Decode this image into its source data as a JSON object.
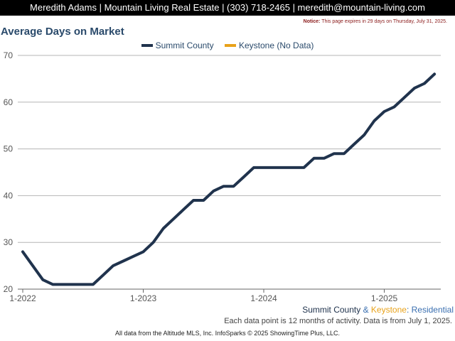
{
  "header": {
    "contact": "Meredith Adams | Mountain Living Real Estate | (303) 718-2465 | meredith@mountain-living.com"
  },
  "notice": {
    "label": "Notice:",
    "text": "This page expires in 29 days on Thursday, July 31, 2025."
  },
  "colors": {
    "summit": "#20334d",
    "keystone": "#e8a21a",
    "grid": "#b5b5b5",
    "title": "#2a4a6b",
    "source_residential": "#3a6fb0"
  },
  "footer": {
    "source_summit": "Summit County",
    "source_amp": " & ",
    "source_keystone": "Keystone",
    "source_colon": ": ",
    "source_type": "Residential",
    "note": "Each data point is 12 months of activity. Data is from July 1, 2025.",
    "credit": "All data from the Altitude MLS, Inc. InfoSparks © 2025 ShowingTime Plus, LLC."
  },
  "chart_data": {
    "type": "line",
    "title": "Average Days on Market",
    "legend_position": "top-center",
    "grid": true,
    "ylim": [
      20,
      70
    ],
    "yticks": [
      "20",
      "30",
      "40",
      "50",
      "60",
      "70"
    ],
    "xticks": [
      "1-2022",
      "1-2023",
      "1-2024",
      "1-2025"
    ],
    "xlim": [
      "2022-01",
      "2025-06"
    ],
    "series": [
      {
        "name": "Summit County",
        "color": "#20334d",
        "x": [
          "2022-01",
          "2022-02",
          "2022-03",
          "2022-04",
          "2022-05",
          "2022-06",
          "2022-07",
          "2022-08",
          "2022-09",
          "2022-10",
          "2022-11",
          "2022-12",
          "2023-01",
          "2023-02",
          "2023-03",
          "2023-04",
          "2023-05",
          "2023-06",
          "2023-07",
          "2023-08",
          "2023-09",
          "2023-10",
          "2023-11",
          "2023-12",
          "2024-01",
          "2024-02",
          "2024-03",
          "2024-04",
          "2024-05",
          "2024-06",
          "2024-07",
          "2024-08",
          "2024-09",
          "2024-10",
          "2024-11",
          "2024-12",
          "2025-01",
          "2025-02",
          "2025-03",
          "2025-04",
          "2025-05",
          "2025-06"
        ],
        "values": [
          28,
          25,
          22,
          21,
          21,
          21,
          21,
          21,
          23,
          25,
          26,
          27,
          28,
          30,
          33,
          35,
          37,
          39,
          39,
          41,
          42,
          42,
          44,
          46,
          46,
          46,
          46,
          46,
          46,
          48,
          48,
          49,
          49,
          51,
          53,
          56,
          58,
          59,
          61,
          63,
          64,
          66
        ]
      },
      {
        "name": "Keystone (No Data)",
        "color": "#e8a21a",
        "x": [],
        "values": []
      }
    ]
  }
}
